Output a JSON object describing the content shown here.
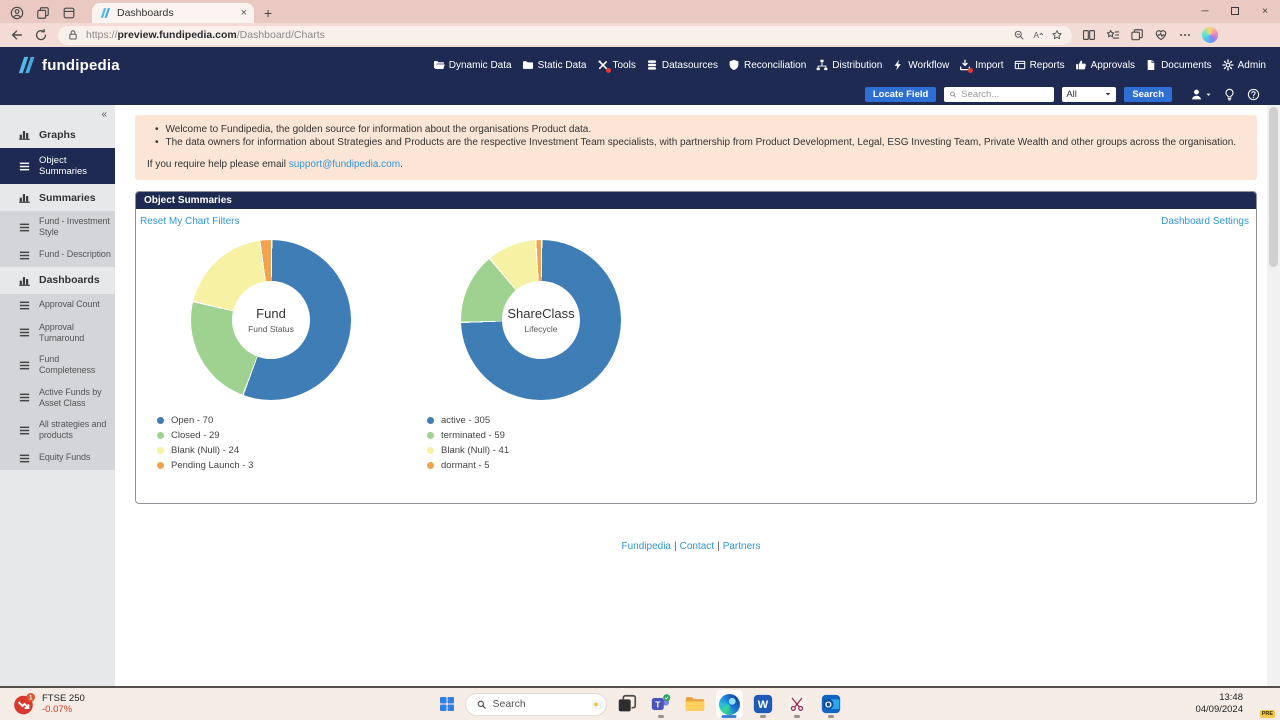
{
  "glyphs": {
    "close": "×",
    "new_tab": "+",
    "minimize": "─",
    "collapse": "«",
    "bullet": "•",
    "pipe": "|"
  },
  "browser": {
    "tab_title": "Dashboards",
    "url_scheme": "https://",
    "url_domain": "preview.fundipedia.com",
    "url_path": "/Dashboard/Charts"
  },
  "app_header": {
    "logo_text": "fundipedia",
    "nav_items": [
      {
        "label": "Dynamic Data",
        "icon": "folder-open-icon",
        "badge": false
      },
      {
        "label": "Static Data",
        "icon": "folder-icon",
        "badge": false
      },
      {
        "label": "Tools",
        "icon": "tools-icon",
        "badge": true
      },
      {
        "label": "Datasources",
        "icon": "database-icon",
        "badge": false
      },
      {
        "label": "Reconciliation",
        "icon": "shield-icon",
        "badge": false
      },
      {
        "label": "Distribution",
        "icon": "hierarchy-icon",
        "badge": false
      },
      {
        "label": "Workflow",
        "icon": "bolt-icon",
        "badge": false
      },
      {
        "label": "Import",
        "icon": "import-icon",
        "badge": true
      },
      {
        "label": "Reports",
        "icon": "report-icon",
        "badge": false
      },
      {
        "label": "Approvals",
        "icon": "thumbs-up-icon",
        "badge": false
      },
      {
        "label": "Documents",
        "icon": "document-icon",
        "badge": false
      },
      {
        "label": "Admin",
        "icon": "gear-icon",
        "badge": false
      }
    ]
  },
  "subheader": {
    "locate_field_label": "Locate Field",
    "search_placeholder": "Search...",
    "scope_value": "All",
    "search_button_label": "Search"
  },
  "sidebar": {
    "items": [
      {
        "label": "Graphs",
        "type": "section"
      },
      {
        "label": "Object Summaries",
        "type": "selected"
      },
      {
        "label": "Summaries",
        "type": "section"
      },
      {
        "label": "Fund - Investment Style",
        "type": "subitem"
      },
      {
        "label": "Fund - Description",
        "type": "subitem"
      },
      {
        "label": "Dashboards",
        "type": "section"
      },
      {
        "label": "Approval Count",
        "type": "subitem"
      },
      {
        "label": "Approval Turnaround",
        "type": "subitem"
      },
      {
        "label": "Fund Completeness",
        "type": "subitem"
      },
      {
        "label": "Active Funds by Asset Class",
        "type": "subitem"
      },
      {
        "label": "All strategies and products",
        "type": "subitem"
      },
      {
        "label": "Equity Funds",
        "type": "subitem"
      }
    ]
  },
  "banner": {
    "bullets": [
      "Welcome to Fundipedia, the golden source for information about the organisations Product data.",
      "The data owners for information about Strategies and Products are the respective Investment Team specialists, with partnership from Product Development, Legal, ESG Investing Team, Private Wealth and other groups across the organisation."
    ],
    "help_prefix": "If you require help please email ",
    "help_link": "support@fundipedia.com",
    "help_suffix": "."
  },
  "panel": {
    "title": "Object Summaries",
    "reset_link": "Reset My Chart Filters",
    "settings_link": "Dashboard Settings"
  },
  "chart_data": [
    {
      "type": "pie",
      "donut": true,
      "title": "Fund",
      "subtitle": "Fund Status",
      "legend_position": "bottom-left",
      "segments": [
        {
          "label": "Open",
          "value": 70,
          "color": "#3e7db6"
        },
        {
          "label": "Closed",
          "value": 29,
          "color": "#9fd191"
        },
        {
          "label": "Blank (Null)",
          "value": 24,
          "color": "#f6f1a3"
        },
        {
          "label": "Pending Launch",
          "value": 3,
          "color": "#f2a34f"
        }
      ]
    },
    {
      "type": "pie",
      "donut": true,
      "title": "ShareClass",
      "subtitle": "Lifecycle",
      "legend_position": "bottom-left",
      "segments": [
        {
          "label": "active",
          "value": 305,
          "color": "#3e7db6"
        },
        {
          "label": "terminated",
          "value": 59,
          "color": "#9fd191"
        },
        {
          "label": "Blank (Null)",
          "value": 41,
          "color": "#f6f1a3"
        },
        {
          "label": "dormant",
          "value": 5,
          "color": "#f2a34f"
        }
      ]
    }
  ],
  "footer": {
    "links": [
      "Fundipedia",
      "Contact",
      "Partners"
    ]
  },
  "taskbar": {
    "stock_name": "FTSE 250",
    "stock_change": "-0.07%",
    "search_placeholder": "Search",
    "time": "13:48",
    "date": "04/09/2024",
    "copilot_badge": "PRE"
  }
}
